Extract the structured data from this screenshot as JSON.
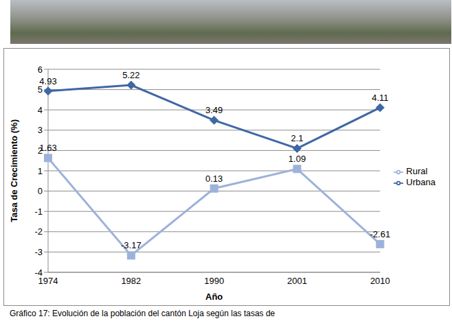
{
  "chart_data": {
    "type": "line",
    "title": "Gráfico 17: Evolución de la población del cantón Loja según las tasas de",
    "x_label": "Año",
    "y_label": "Tasa de Crecimiento (%)",
    "categories": [
      "1974",
      "1982",
      "1990",
      "2001",
      "2010"
    ],
    "series": [
      {
        "name": "Urbana",
        "color": "#3f67a5",
        "marker": "diamond",
        "values": [
          4.93,
          5.22,
          3.49,
          2.1,
          4.11
        ]
      },
      {
        "name": "Rural",
        "color": "#9db2da",
        "marker": "square",
        "values": [
          1.63,
          -3.17,
          0.13,
          1.09,
          -2.61
        ]
      }
    ],
    "ylim": [
      -4,
      6
    ],
    "yticks": [
      -4,
      -3,
      -2,
      -1,
      0,
      1,
      2,
      3,
      4,
      5,
      6
    ],
    "grid": true,
    "legend": "right",
    "data_labels": true
  }
}
